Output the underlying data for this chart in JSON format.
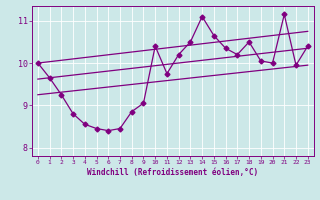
{
  "xlabel": "Windchill (Refroidissement éolien,°C)",
  "bg_color": "#cce8e8",
  "line_color": "#800080",
  "xmin": -0.5,
  "xmax": 23.5,
  "ymin": 7.8,
  "ymax": 11.35,
  "yticks": [
    8,
    9,
    10,
    11
  ],
  "xticks": [
    0,
    1,
    2,
    3,
    4,
    5,
    6,
    7,
    8,
    9,
    10,
    11,
    12,
    13,
    14,
    15,
    16,
    17,
    18,
    19,
    20,
    21,
    22,
    23
  ],
  "data_x": [
    0,
    1,
    2,
    3,
    4,
    5,
    6,
    7,
    8,
    9,
    10,
    11,
    12,
    13,
    14,
    15,
    16,
    17,
    18,
    19,
    20,
    21,
    22,
    23
  ],
  "data_y": [
    10.0,
    9.65,
    9.25,
    8.8,
    8.55,
    8.45,
    8.4,
    8.45,
    8.85,
    9.05,
    10.4,
    9.75,
    10.2,
    10.5,
    11.1,
    10.65,
    10.35,
    10.2,
    10.5,
    10.05,
    10.0,
    11.15,
    9.95,
    10.4
  ],
  "upper_line": [
    [
      0,
      10.0
    ],
    [
      23,
      10.75
    ]
  ],
  "lower_line": [
    [
      0,
      9.25
    ],
    [
      23,
      9.95
    ]
  ],
  "mid_line": [
    [
      0,
      9.62
    ],
    [
      23,
      10.35
    ]
  ]
}
